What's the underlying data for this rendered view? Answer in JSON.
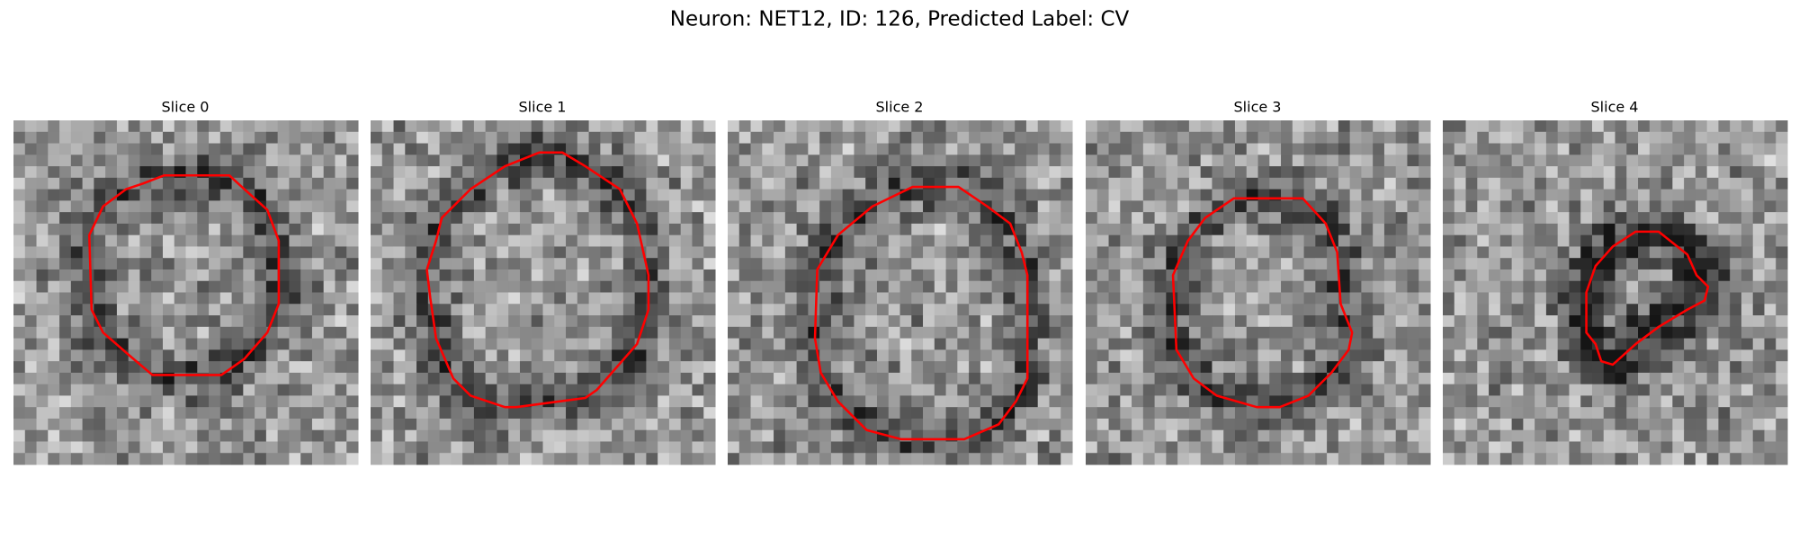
{
  "title": "Neuron: NET12, ID: 126, Predicted Label: CV",
  "panels": [
    {
      "title": "Slice 0"
    },
    {
      "title": "Slice 1"
    },
    {
      "title": "Slice 2"
    },
    {
      "title": "Slice 3"
    },
    {
      "title": "Slice 4"
    }
  ]
}
